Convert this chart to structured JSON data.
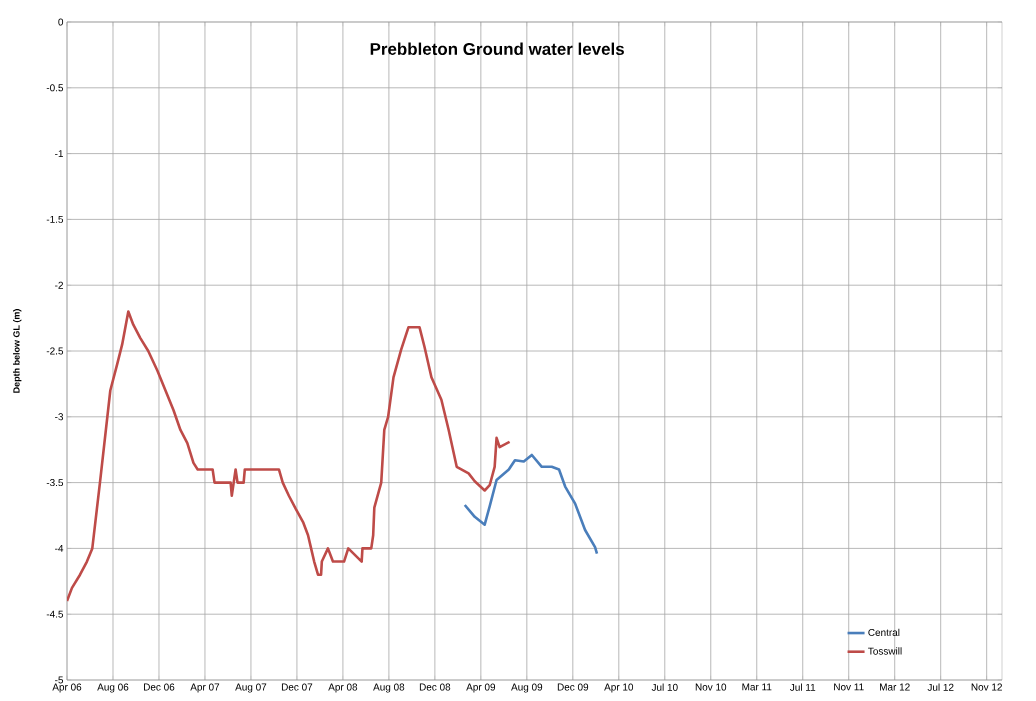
{
  "chart_data": {
    "type": "line",
    "title": "Prebbleton Ground water levels",
    "ylabel": "Depth below GL (m)",
    "xlim": [
      "2006-04-22",
      "2012-12-26"
    ],
    "xticks": [
      {
        "value": "2006-04-22",
        "label": "Apr 06"
      },
      {
        "value": "2006-08-20",
        "label": "Aug 06"
      },
      {
        "value": "2006-12-18",
        "label": "Dec 06"
      },
      {
        "value": "2007-04-17",
        "label": "Apr 07"
      },
      {
        "value": "2007-08-15",
        "label": "Aug 07"
      },
      {
        "value": "2007-12-13",
        "label": "Dec 07"
      },
      {
        "value": "2008-04-11",
        "label": "Apr 08"
      },
      {
        "value": "2008-08-09",
        "label": "Aug 08"
      },
      {
        "value": "2008-12-07",
        "label": "Dec 08"
      },
      {
        "value": "2009-04-06",
        "label": "Apr 09"
      },
      {
        "value": "2009-08-04",
        "label": "Aug 09"
      },
      {
        "value": "2009-12-02",
        "label": "Dec 09"
      },
      {
        "value": "2010-04-01",
        "label": "Apr 10"
      },
      {
        "value": "2010-07-30",
        "label": "Jul 10"
      },
      {
        "value": "2010-11-27",
        "label": "Nov 10"
      },
      {
        "value": "2011-03-27",
        "label": "Mar 11"
      },
      {
        "value": "2011-07-25",
        "label": "Jul 11"
      },
      {
        "value": "2011-11-22",
        "label": "Nov 11"
      },
      {
        "value": "2012-03-21",
        "label": "Mar 12"
      },
      {
        "value": "2012-07-19",
        "label": "Jul 12"
      },
      {
        "value": "2012-11-16",
        "label": "Nov 12"
      }
    ],
    "ylim": [
      -5,
      0
    ],
    "yticks": [
      -5,
      -4.5,
      -4,
      -3.5,
      -3,
      -2.5,
      -2,
      -1.5,
      -1,
      -0.5,
      0
    ],
    "grid": true,
    "legend": "bottom right",
    "series": [
      {
        "name": "Central",
        "color": "#4a7ebb",
        "x": [
          "2009-02-23",
          "2009-03-21",
          "2009-04-16",
          "2009-04-29",
          "2009-05-17",
          "2009-06-18",
          "2009-07-04",
          "2009-07-27",
          "2009-08-17",
          "2009-09-12",
          "2009-10-08",
          "2009-10-27",
          "2009-11-12",
          "2009-12-08",
          "2010-01-03",
          "2010-01-29",
          "2010-02-03"
        ],
        "values": [
          -3.67,
          -3.76,
          -3.82,
          -3.68,
          -3.48,
          -3.4,
          -3.33,
          -3.34,
          -3.29,
          -3.38,
          -3.38,
          -3.4,
          -3.53,
          -3.66,
          -3.86,
          -3.99,
          -4.04
        ]
      },
      {
        "name": "Tosswill",
        "color": "#be4b48",
        "x": [
          "2006-04-22",
          "2006-05-05",
          "2006-05-26",
          "2006-06-13",
          "2006-06-27",
          "2006-07-17",
          "2006-08-13",
          "2006-08-31",
          "2006-09-13",
          "2006-09-29",
          "2006-10-12",
          "2006-10-30",
          "2006-11-20",
          "2006-12-14",
          "2007-01-04",
          "2007-01-25",
          "2007-02-12",
          "2007-03-02",
          "2007-03-18",
          "2007-03-29",
          "2007-05-07",
          "2007-05-12",
          "2007-06-23",
          "2007-06-26",
          "2007-07-01",
          "2007-07-06",
          "2007-07-11",
          "2007-07-27",
          "2007-07-30",
          "2007-10-27",
          "2007-11-06",
          "2007-11-22",
          "2007-12-10",
          "2007-12-29",
          "2008-01-11",
          "2008-01-19",
          "2008-01-27",
          "2008-02-06",
          "2008-02-14",
          "2008-02-16",
          "2008-03-03",
          "2008-03-16",
          "2008-04-14",
          "2008-04-25",
          "2008-05-30",
          "2008-06-01",
          "2008-06-24",
          "2008-06-29",
          "2008-07-02",
          "2008-07-20",
          "2008-07-28",
          "2008-08-07",
          "2008-08-21",
          "2008-09-10",
          "2008-09-29",
          "2008-10-28",
          "2008-11-10",
          "2008-11-28",
          "2008-12-24",
          "2009-01-12",
          "2009-02-02",
          "2009-03-05",
          "2009-03-21",
          "2009-04-16",
          "2009-04-29",
          "2009-05-12",
          "2009-05-17",
          "2009-05-25",
          "2009-06-20"
        ],
        "values": [
          -4.4,
          -4.3,
          -4.2,
          -4.1,
          -4.0,
          -3.5,
          -2.8,
          -2.6,
          -2.45,
          -2.2,
          -2.3,
          -2.4,
          -2.5,
          -2.65,
          -2.8,
          -2.95,
          -3.1,
          -3.2,
          -3.35,
          -3.4,
          -3.4,
          -3.5,
          -3.5,
          -3.6,
          -3.5,
          -3.4,
          -3.5,
          -3.5,
          -3.4,
          -3.4,
          -3.5,
          -3.6,
          -3.7,
          -3.8,
          -3.9,
          -4.0,
          -4.1,
          -4.2,
          -4.2,
          -4.1,
          -4.0,
          -4.1,
          -4.1,
          -4.0,
          -4.1,
          -4.0,
          -4.0,
          -3.9,
          -3.69,
          -3.5,
          -3.1,
          -3.0,
          -2.7,
          -2.49,
          -2.32,
          -2.32,
          -2.47,
          -2.7,
          -2.87,
          -3.1,
          -3.38,
          -3.43,
          -3.49,
          -3.56,
          -3.52,
          -3.38,
          -3.16,
          -3.23,
          -3.19
        ]
      }
    ]
  }
}
